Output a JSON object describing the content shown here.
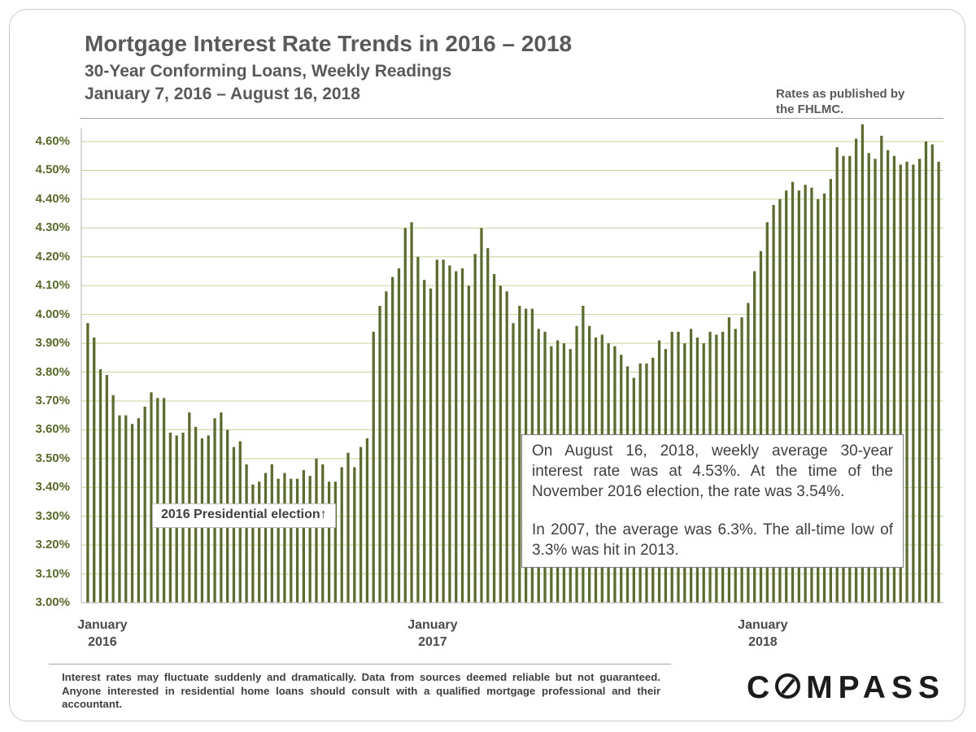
{
  "header": {
    "title": "Mortgage Interest Rate Trends in 2016 – 2018",
    "subtitle": "30-Year Conforming Loans, Weekly Readings",
    "date_range": "January 7, 2016 – August 16, 2018",
    "source_note": "Rates as published by the FHLMC."
  },
  "annotations": {
    "election_label": "2016 Presidential election",
    "election_arrow": "↑",
    "callout_p1": "On August 16, 2018, weekly average 30-year interest rate was at 4.53%. At the time of the November 2016 election, the rate was 3.54%.",
    "callout_p2": "In 2007, the average was 6.3%. The all-time low of 3.3% was hit in 2013."
  },
  "footer": {
    "disclaimer": "Interest rates may fluctuate suddenly and dramatically. Data from sources deemed reliable but not guaranteed. Anyone interested in residential home loans should consult with a qualified mortgage professional and their accountant.",
    "logo_prefix": "C",
    "logo_suffix": "MPASS"
  },
  "colors": {
    "bar": "#5c6b30",
    "gridline": "#c8d39b",
    "axis": "#b0b0b0",
    "tick_label": "#5a6a2c"
  },
  "chart_data": {
    "type": "bar",
    "title": "Mortgage Interest Rate Trends in 2016 – 2018",
    "subtitle": "30-Year Conforming Loans, Weekly Readings",
    "xlabel": "",
    "ylabel": "",
    "ylim": [
      3.0,
      4.6
    ],
    "y_ticks": [
      "3.00%",
      "3.10%",
      "3.20%",
      "3.30%",
      "3.40%",
      "3.50%",
      "3.60%",
      "3.70%",
      "3.80%",
      "3.90%",
      "4.00%",
      "4.10%",
      "4.20%",
      "4.30%",
      "4.40%",
      "4.50%",
      "4.60%"
    ],
    "x_tick_labels": [
      {
        "label": "January",
        "year": "2016",
        "week_index": 0
      },
      {
        "label": "January",
        "year": "2017",
        "week_index": 52
      },
      {
        "label": "January",
        "year": "2018",
        "week_index": 104
      }
    ],
    "grid": true,
    "legend": "none",
    "series": [
      {
        "values": [
          3.97,
          3.92,
          3.81,
          3.79,
          3.72,
          3.65,
          3.65,
          3.62,
          3.64,
          3.68,
          3.73,
          3.71,
          3.71,
          3.59,
          3.58,
          3.59,
          3.66,
          3.61,
          3.57,
          3.58,
          3.64,
          3.66,
          3.6,
          3.54,
          3.56,
          3.48,
          3.41,
          3.42,
          3.45,
          3.48,
          3.43,
          3.45,
          3.43,
          3.43,
          3.46,
          3.44,
          3.5,
          3.48,
          3.42,
          3.42,
          3.47,
          3.52,
          3.47,
          3.54,
          3.57,
          3.94,
          4.03,
          4.08,
          4.13,
          4.16,
          4.3,
          4.32,
          4.2,
          4.12,
          4.09,
          4.19,
          4.19,
          4.17,
          4.15,
          4.16,
          4.1,
          4.21,
          4.3,
          4.23,
          4.14,
          4.1,
          4.08,
          3.97,
          4.03,
          4.02,
          4.02,
          3.95,
          3.94,
          3.89,
          3.91,
          3.9,
          3.88,
          3.96,
          4.03,
          3.96,
          3.92,
          3.93,
          3.9,
          3.89,
          3.86,
          3.82,
          3.78,
          3.83,
          3.83,
          3.85,
          3.91,
          3.88,
          3.94,
          3.94,
          3.9,
          3.95,
          3.92,
          3.9,
          3.94,
          3.93,
          3.94,
          3.99,
          3.95,
          3.99,
          4.04,
          4.15,
          4.22,
          4.32,
          4.38,
          4.4,
          4.43,
          4.46,
          4.43,
          4.45,
          4.44,
          4.4,
          4.42,
          4.47,
          4.58,
          4.55,
          4.55,
          4.61,
          4.66,
          4.56,
          4.54,
          4.62,
          4.57,
          4.55,
          4.52,
          4.53,
          4.52,
          4.54,
          4.6,
          4.59,
          4.53
        ]
      }
    ]
  }
}
